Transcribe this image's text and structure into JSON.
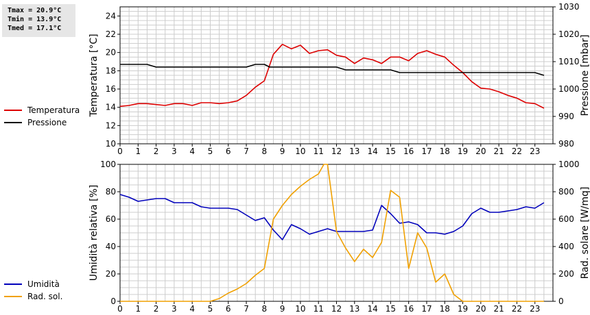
{
  "stats": {
    "tmax": "Tmax = 20.9°C",
    "tmin": "Tmin = 13.9°C",
    "tmed": "Tmed = 17.1°C"
  },
  "colors": {
    "temperature": "#dd0000",
    "pressure": "#000000",
    "humidity": "#0000bb",
    "radiation": "#f0a000",
    "grid": "#cccccc",
    "stats_bg": "#e6e6e6"
  },
  "chart_data": [
    {
      "type": "line",
      "ylabel": "Temperatura [°C]",
      "y2label": "Pressione [mbar]",
      "xlim": [
        0,
        24
      ],
      "ylim": [
        10,
        25
      ],
      "y2lim": [
        980,
        1030
      ],
      "x_ticks": [
        "0",
        "1",
        "2",
        "3",
        "4",
        "5",
        "6",
        "7",
        "8",
        "9",
        "10",
        "11",
        "12",
        "13",
        "14",
        "15",
        "16",
        "17",
        "18",
        "19",
        "20",
        "21",
        "22",
        "23"
      ],
      "y_ticks": [
        "10",
        "12",
        "14",
        "16",
        "18",
        "20",
        "22",
        "24"
      ],
      "y2_ticks": [
        "980",
        "990",
        "1000",
        "1010",
        "1020",
        "1030"
      ],
      "grid": true,
      "legend_position": "left",
      "series": [
        {
          "name": "Temperatura",
          "axis": "left",
          "color": "#dd0000",
          "x": [
            0,
            0.5,
            1,
            1.5,
            2,
            2.5,
            3,
            3.5,
            4,
            4.5,
            5,
            5.5,
            6,
            6.5,
            7,
            7.5,
            8,
            8.5,
            9,
            9.5,
            10,
            10.5,
            11,
            11.5,
            12,
            12.5,
            13,
            13.5,
            14,
            14.5,
            15,
            15.5,
            16,
            16.5,
            17,
            17.5,
            18,
            18.5,
            19,
            19.5,
            20,
            20.5,
            21,
            21.5,
            22,
            22.5,
            23,
            23.5
          ],
          "y": [
            14.1,
            14.2,
            14.4,
            14.4,
            14.3,
            14.2,
            14.4,
            14.4,
            14.2,
            14.5,
            14.5,
            14.4,
            14.5,
            14.7,
            15.3,
            16.2,
            16.9,
            19.8,
            20.9,
            20.4,
            20.8,
            19.9,
            20.2,
            20.3,
            19.7,
            19.5,
            18.8,
            19.4,
            19.2,
            18.8,
            19.5,
            19.5,
            19.1,
            19.9,
            20.2,
            19.8,
            19.5,
            18.6,
            17.8,
            16.8,
            16.1,
            16.0,
            15.7,
            15.3,
            15.0,
            14.5,
            14.4,
            13.9
          ]
        },
        {
          "name": "Pressione",
          "axis": "right",
          "color": "#000000",
          "x": [
            0,
            1.5,
            2,
            7,
            7.5,
            8,
            8.3,
            12,
            12.5,
            15,
            15.5,
            23,
            23.5
          ],
          "y": [
            1009,
            1009,
            1008,
            1008,
            1009,
            1009,
            1008,
            1008,
            1007,
            1007,
            1006,
            1006,
            1005
          ]
        }
      ]
    },
    {
      "type": "line",
      "ylabel": "Umidità relativa [%]",
      "y2label": "Rad. solare [W/mq]",
      "xlim": [
        0,
        24
      ],
      "ylim": [
        0,
        100
      ],
      "y2lim": [
        0,
        1000
      ],
      "x_ticks": [
        "0",
        "1",
        "2",
        "3",
        "4",
        "5",
        "6",
        "7",
        "8",
        "9",
        "10",
        "11",
        "12",
        "13",
        "14",
        "15",
        "16",
        "17",
        "18",
        "19",
        "20",
        "21",
        "22",
        "23"
      ],
      "y_ticks": [
        "0",
        "20",
        "40",
        "60",
        "80",
        "100"
      ],
      "y2_ticks": [
        "0",
        "200",
        "400",
        "600",
        "800",
        "1000"
      ],
      "grid": true,
      "legend_position": "left",
      "series": [
        {
          "name": "Umidità",
          "axis": "left",
          "color": "#0000bb",
          "x": [
            0,
            0.5,
            1,
            1.5,
            2,
            2.5,
            3,
            3.5,
            4,
            4.5,
            5,
            5.5,
            6,
            6.5,
            7,
            7.5,
            8,
            8.5,
            9,
            9.5,
            10,
            10.5,
            11,
            11.5,
            12,
            12.5,
            13,
            13.5,
            14,
            14.5,
            15,
            15.5,
            16,
            16.5,
            17,
            17.5,
            18,
            18.5,
            19,
            19.5,
            20,
            20.5,
            21,
            21.5,
            22,
            22.5,
            23,
            23.5
          ],
          "y": [
            78,
            76,
            73,
            74,
            75,
            75,
            72,
            72,
            72,
            69,
            68,
            68,
            68,
            67,
            63,
            59,
            61,
            52,
            45,
            56,
            53,
            49,
            51,
            53,
            51,
            51,
            51,
            51,
            52,
            70,
            64,
            57,
            58,
            56,
            50,
            50,
            49,
            51,
            55,
            64,
            68,
            65,
            65,
            66,
            67,
            69,
            68,
            72
          ]
        },
        {
          "name": "Rad. sol.",
          "axis": "right",
          "color": "#f0a000",
          "x": [
            0,
            5,
            5.5,
            6,
            6.5,
            7,
            7.5,
            8,
            8.5,
            9,
            9.5,
            10,
            10.5,
            11,
            11.3,
            11.5,
            12,
            12.5,
            13,
            13.5,
            14,
            14.5,
            15,
            15.5,
            16,
            16.5,
            17,
            17.5,
            18,
            18.5,
            19,
            19.5,
            20,
            21,
            22,
            23,
            23.5
          ],
          "y": [
            0,
            0,
            20,
            60,
            90,
            130,
            190,
            240,
            600,
            700,
            780,
            840,
            890,
            930,
            1010,
            1000,
            510,
            390,
            290,
            380,
            320,
            430,
            810,
            760,
            240,
            500,
            390,
            140,
            200,
            50,
            0,
            0,
            0,
            0,
            0,
            0,
            0
          ]
        }
      ]
    }
  ]
}
